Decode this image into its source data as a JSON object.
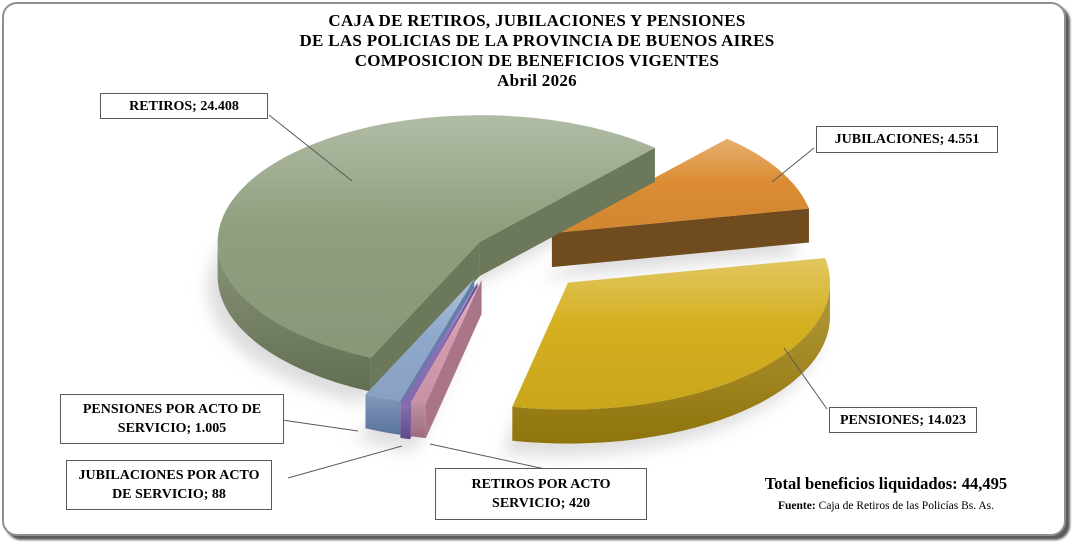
{
  "title": {
    "lines": [
      "CAJA DE RETIROS, JUBILACIONES Y PENSIONES",
      "DE LAS POLICIAS DE LA PROVINCIA DE BUENOS AIRES",
      "COMPOSICION DE BENEFICIOS VIGENTES",
      "Abril 2026"
    ]
  },
  "chart_data": {
    "type": "pie",
    "variant": "3d-exploded",
    "title": "CAJA DE RETIROS, JUBILACIONES Y PENSIONES DE LAS POLICIAS DE LA PROVINCIA DE BUENOS AIRES - COMPOSICION DE BENEFICIOS VIGENTES",
    "period": "Abril 2026",
    "total": 44495,
    "legend_position": "none",
    "labels_style": "callout-boxes",
    "rotation_clockwise_from_top_deg": 42,
    "slices": [
      {
        "label": "RETIROS",
        "value": 24408,
        "display": "RETIROS; 24.408",
        "color": "#909F7E",
        "side_color": "#6F7D5D"
      },
      {
        "label": "JUBILACIONES",
        "value": 4551,
        "display": "JUBILACIONES; 4.551",
        "color": "#DC8D33",
        "side_color": "#744E1F"
      },
      {
        "label": "PENSIONES",
        "value": 14023,
        "display": "PENSIONES; 14.023",
        "color": "#D4AF1E",
        "side_color": "#A3840F"
      },
      {
        "label": "PENSIONES POR ACTO DE SERVICIO",
        "value": 1005,
        "display": "PENSIONES POR ACTO DE SERVICIO; 1.005",
        "color": "#8FA8CC",
        "side_color": "#6683AE"
      },
      {
        "label": "JUBILACIONES POR ACTO DE SERVICIO",
        "value": 88,
        "display": "JUBILACIONES POR ACTO DE SERVICIO; 88",
        "color": "#8A70B8",
        "side_color": "#6B549E"
      },
      {
        "label": "RETIROS POR ACTO SERVICIO",
        "value": 420,
        "display": "RETIROS POR ACTO SERVICIO; 420",
        "color": "#D49BAE",
        "side_color": "#B17A8E"
      }
    ]
  },
  "footer": {
    "total_label": "Total beneficios liquidados: 44,495",
    "source_label": "Fuente:",
    "source_text": "Caja de Retiros de las Policías Bs. As."
  }
}
